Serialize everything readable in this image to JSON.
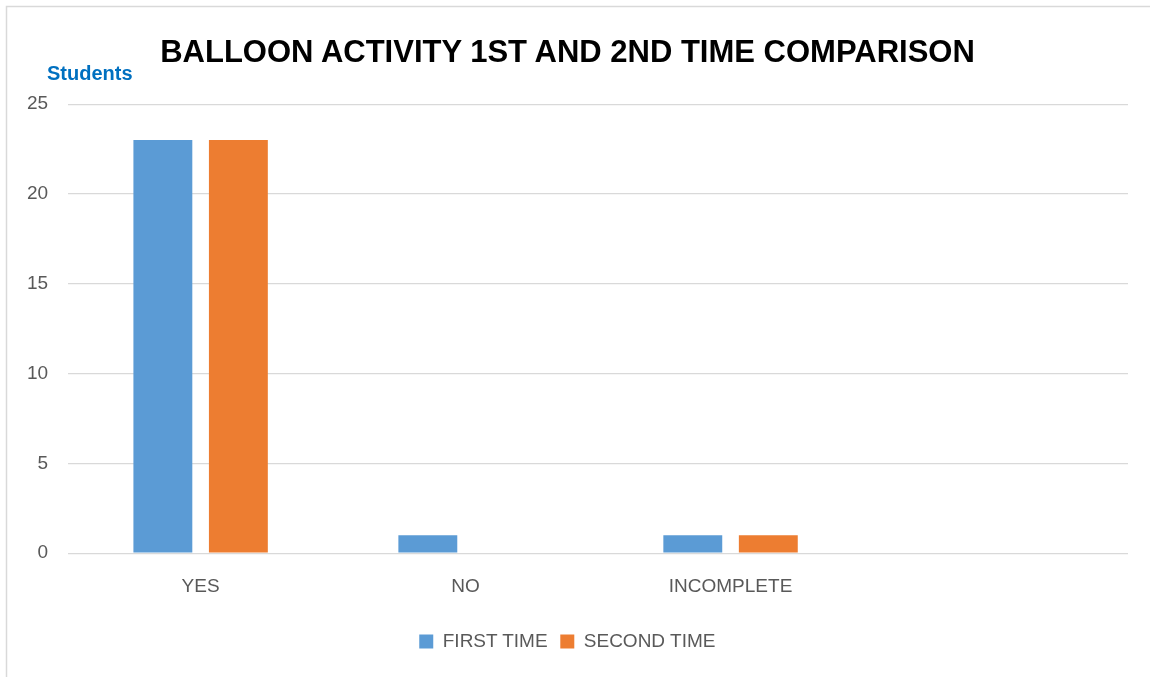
{
  "chart_data": {
    "type": "bar",
    "title": "BALLOON ACTIVITY 1ST AND 2ND TIME COMPARISON",
    "ylabel": "Students",
    "categories": [
      "YES",
      "NO",
      "INCOMPLETE",
      null
    ],
    "series": [
      {
        "name": "FIRST TIME",
        "color": "#5b9bd5",
        "values": [
          23,
          1,
          1,
          null
        ]
      },
      {
        "name": "SECOND TIME",
        "color": "#ed7d31",
        "values": [
          23,
          0,
          1,
          null
        ]
      }
    ],
    "ylim": [
      0,
      25
    ],
    "yticks": [
      0,
      5,
      10,
      15,
      20,
      25
    ],
    "grid": "y",
    "legend": "bottom"
  }
}
